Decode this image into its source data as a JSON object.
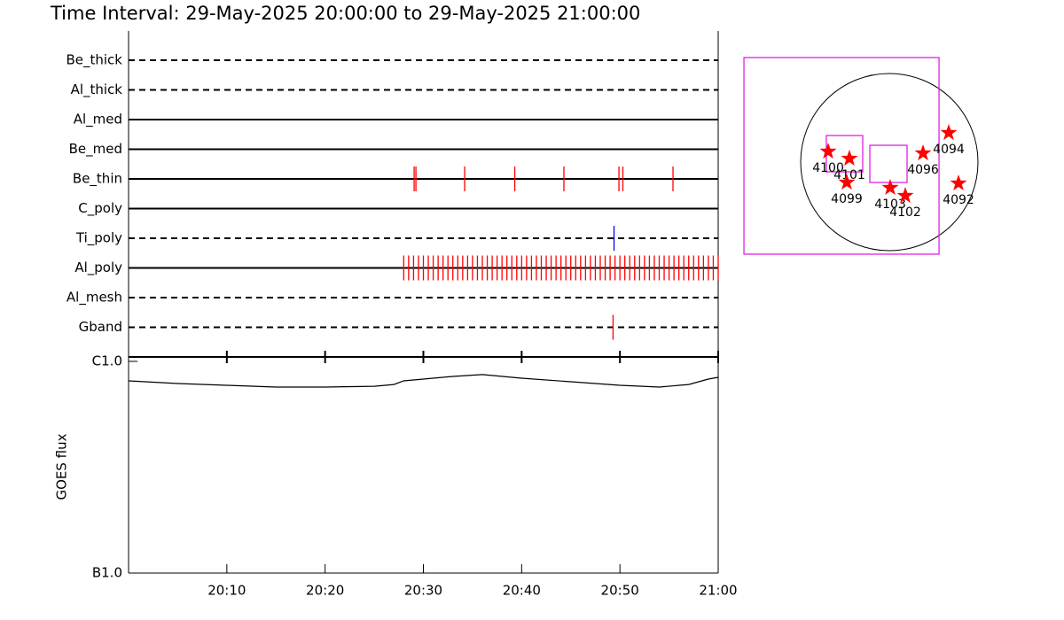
{
  "chart_data": [
    {
      "type": "timeline",
      "title": "Time Interval: 29-May-2025 20:00:00 to 29-May-2025 21:00:00",
      "xlim": [
        0,
        60
      ],
      "rows": [
        {
          "name": "Be_thick",
          "line": "dashed",
          "color": "#ff0000",
          "events": []
        },
        {
          "name": "Al_thick",
          "line": "dashed",
          "color": "#ff0000",
          "events": []
        },
        {
          "name": "Al_med",
          "line": "solid",
          "color": "#ff0000",
          "events": []
        },
        {
          "name": "Be_med",
          "line": "solid",
          "color": "#ff0000",
          "events": []
        },
        {
          "name": "Be_thin",
          "line": "solid",
          "color": "#ff0000",
          "events": [
            29.06,
            29.24,
            34.2,
            39.3,
            44.3,
            49.9,
            50.3,
            55.4
          ]
        },
        {
          "name": "C_poly",
          "line": "solid",
          "color": "#ff0000",
          "events": []
        },
        {
          "name": "Ti_poly",
          "line": "dashed",
          "color": "#0000ff",
          "events": [
            49.4
          ]
        },
        {
          "name": "Al_poly",
          "line": "solid",
          "color": "#ff0000",
          "events": [
            28.0,
            28.5,
            29.0,
            29.5,
            30.0,
            30.5,
            31.0,
            31.5,
            32.0,
            32.5,
            33.0,
            33.5,
            34.0,
            34.5,
            35.0,
            35.5,
            36.0,
            36.5,
            37.0,
            37.5,
            38.0,
            38.5,
            39.0,
            39.5,
            40.0,
            40.5,
            41.0,
            41.5,
            42.0,
            42.5,
            43.0,
            43.5,
            44.0,
            44.5,
            45.0,
            45.5,
            46.0,
            46.5,
            47.0,
            47.5,
            48.0,
            48.5,
            49.0,
            49.5,
            50.0,
            50.5,
            51.0,
            51.5,
            52.0,
            52.5,
            53.0,
            53.5,
            54.0,
            54.5,
            55.0,
            55.5,
            56.0,
            56.5,
            57.0,
            57.5,
            58.0,
            58.5,
            59.0,
            59.5,
            60.0
          ]
        },
        {
          "name": "Al_mesh",
          "line": "dashed",
          "color": "#ff0000",
          "events": []
        },
        {
          "name": "Gband",
          "line": "dashed",
          "color": "#ff0000",
          "events": [
            49.3
          ]
        }
      ]
    },
    {
      "type": "line",
      "ylabel": "GOES flux",
      "log_y": true,
      "ylim": [
        1e-07,
        1e-06
      ],
      "yticks": [
        {
          "value": 1e-07,
          "label": "B1.0"
        },
        {
          "value": 1e-06,
          "label": "C1.0"
        }
      ],
      "xlim": [
        0,
        60
      ],
      "xticks": [
        {
          "value": 10,
          "label": "20:10"
        },
        {
          "value": 20,
          "label": "20:20"
        },
        {
          "value": 30,
          "label": "20:30"
        },
        {
          "value": 40,
          "label": "20:40"
        },
        {
          "value": 50,
          "label": "20:50"
        },
        {
          "value": 60,
          "label": "21:00"
        }
      ],
      "color": "#000000",
      "x": [
        0,
        5,
        10,
        15,
        20,
        25,
        27,
        28,
        30,
        33,
        36,
        40,
        45,
        50,
        54,
        57,
        59,
        60
      ],
      "values": [
        8.09e-07,
        7.86e-07,
        7.71e-07,
        7.56e-07,
        7.56e-07,
        7.63e-07,
        7.78e-07,
        8.09e-07,
        8.25e-07,
        8.49e-07,
        8.66e-07,
        8.33e-07,
        8.01e-07,
        7.71e-07,
        7.56e-07,
        7.78e-07,
        8.25e-07,
        8.41e-07
      ]
    },
    {
      "type": "map",
      "disk_radius": 960,
      "fov_color": "#e020e0",
      "fov": [
        {
          "x": [
            -1574,
            538
          ],
          "y": [
            -998,
            1133
          ]
        },
        {
          "x": [
            -682,
            -288
          ],
          "y": [
            -106,
            288
          ]
        },
        {
          "x": [
            -211,
            192
          ],
          "y": [
            -221,
            182
          ]
        }
      ],
      "marker_color": "#ff0000",
      "labels": [
        "4100",
        "4101",
        "4099",
        "4103",
        "4102",
        "4096",
        "4094",
        "4092"
      ],
      "x": [
        -662,
        -432,
        -461,
        10,
        173,
        365,
        643,
        749
      ],
      "y": [
        115,
        38,
        -221,
        -278,
        -365,
        96,
        317,
        -230
      ]
    }
  ]
}
